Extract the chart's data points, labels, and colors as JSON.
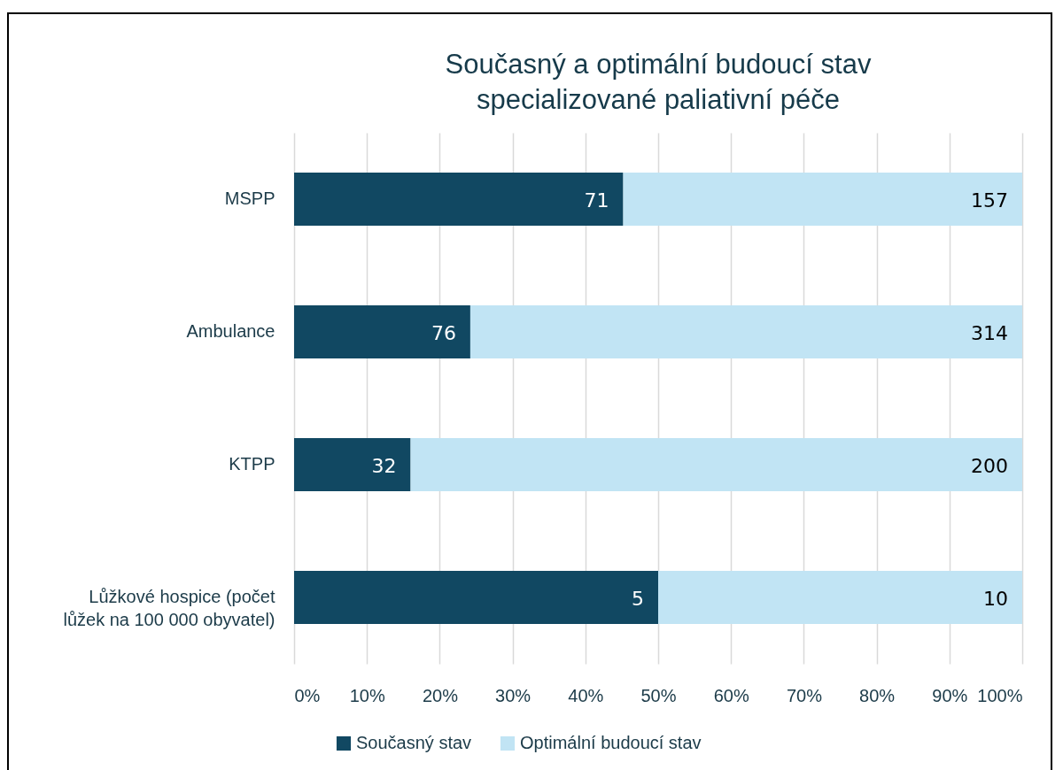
{
  "chart_data": {
    "type": "bar",
    "orientation": "horizontal",
    "stacked": true,
    "title": "Současný a optimální budoucí stav\nspecializované paliativní péče",
    "categories": [
      "MSPP",
      "Ambulance",
      "KTPP",
      "Lůžkové hospice (počet\nlůžek na 100 000 obyvatel)"
    ],
    "series": [
      {
        "name": "Současný stav",
        "color": "#114862",
        "values": [
          45.2,
          24.2,
          16,
          50
        ]
      },
      {
        "name": "Optimální budoucí stav",
        "color": "#c1e4f4",
        "values": [
          54.8,
          75.8,
          84,
          50
        ]
      }
    ],
    "annotations": [
      {
        "text": "71",
        "x": 45.2,
        "y": "MSPP"
      },
      {
        "text": "76",
        "x": 24.2,
        "y": "Ambulance"
      },
      {
        "text": "32",
        "x": 16,
        "y": "KTPP"
      },
      {
        "text": "5",
        "x": 50,
        "y": "Lůžkové hospice (počet\nlůžek na 100 000 obyvatel)"
      },
      {
        "text": "157",
        "x": 100,
        "y": "MSPP"
      },
      {
        "text": "314",
        "x": 100,
        "y": "Ambulance"
      },
      {
        "text": "200",
        "x": 100,
        "y": "KTPP"
      },
      {
        "text": "10",
        "x": 100,
        "y": "Lůžkové hospice (počet\nlůžek na 100 000 obyvatel)"
      }
    ],
    "xlim": [
      0,
      100
    ],
    "xticks": [
      {
        "value": 0,
        "label": "0%"
      },
      {
        "value": 10,
        "label": "10%"
      },
      {
        "value": 20,
        "label": "20%"
      },
      {
        "value": 30,
        "label": "30%"
      },
      {
        "value": 40,
        "label": "40%"
      },
      {
        "value": 50,
        "label": "50%"
      },
      {
        "value": 60,
        "label": "60%"
      },
      {
        "value": 70,
        "label": "70%"
      },
      {
        "value": 80,
        "label": "80%"
      },
      {
        "value": 90,
        "label": "90%"
      },
      {
        "value": 100,
        "label": "100%"
      }
    ],
    "grid": "x",
    "legend": "bottom"
  }
}
